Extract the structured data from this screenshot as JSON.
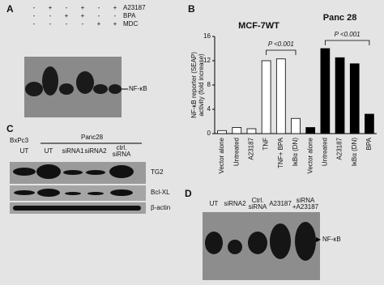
{
  "panel_a": {
    "label": "A",
    "rows": [
      {
        "name": "A23187",
        "signs": [
          "-",
          "+",
          "-",
          "+",
          "-",
          "+"
        ]
      },
      {
        "name": "BPA",
        "signs": [
          "-",
          "-",
          "+",
          "+",
          "-",
          "-"
        ]
      },
      {
        "name": "MDC",
        "signs": [
          "-",
          "-",
          "-",
          "-",
          "+",
          "+"
        ]
      }
    ],
    "band_label": "NF-κB"
  },
  "chart_data": {
    "type": "bar",
    "label": "B",
    "y_label": [
      "NF-κB reporter (SEAP)",
      "activity (fold increase)"
    ],
    "groups": [
      "MCF-7WT",
      "Panc 28"
    ],
    "annotations": [
      "P <0.001",
      "P <0.001"
    ],
    "categories": [
      "Vector alone",
      "Untreated",
      "A23187",
      "TNF",
      "TNF+ BPA",
      "IκBα (DN)",
      "Vector alone",
      "Untreated",
      "A23187",
      "IκBα (DN)",
      "BPA"
    ],
    "values": [
      0.5,
      1.0,
      0.8,
      12.0,
      12.3,
      2.5,
      1.0,
      14.0,
      12.5,
      11.5,
      3.2
    ],
    "colors": [
      "#ffffff",
      "#ffffff",
      "#ffffff",
      "#ffffff",
      "#ffffff",
      "#ffffff",
      "#000000",
      "#000000",
      "#000000",
      "#000000",
      "#000000"
    ],
    "ylim": [
      0,
      16
    ],
    "yticks": [
      0,
      4,
      8,
      12,
      16
    ]
  },
  "panel_c": {
    "label": "C",
    "cell_lines": [
      "BxPc3",
      "Panc28"
    ],
    "lanes": [
      [
        "UT"
      ],
      [
        "UT"
      ],
      [
        "siRNA1"
      ],
      [
        "siRNA2"
      ],
      [
        "ctrl.",
        "siRNA"
      ]
    ],
    "proteins": [
      "TG2",
      "Bcl-XL",
      "β-actin"
    ]
  },
  "panel_d": {
    "label": "D",
    "lanes": [
      [
        "UT"
      ],
      [
        "siRNA2"
      ],
      [
        "Ctrl.",
        "siRNA"
      ],
      [
        "A23187"
      ],
      [
        "siRNA",
        "+A23187"
      ]
    ],
    "band_label": "NF-κB"
  }
}
